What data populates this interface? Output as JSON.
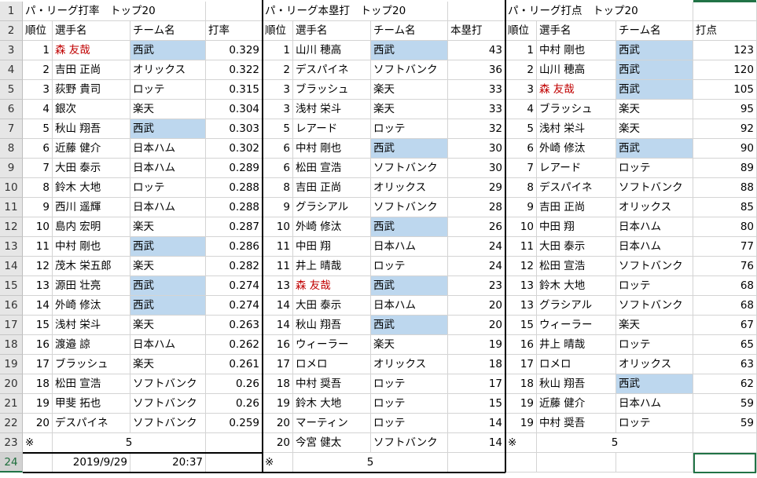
{
  "colors": {
    "seibu_highlight": "#bdd7ee",
    "name_red": "#c00000",
    "select_green": "#217346"
  },
  "row_numbers": [
    "1",
    "2",
    "3",
    "4",
    "5",
    "6",
    "7",
    "8",
    "9",
    "10",
    "11",
    "12",
    "13",
    "14",
    "15",
    "16",
    "17",
    "18",
    "19",
    "20",
    "21",
    "22",
    "23",
    "24"
  ],
  "batting": {
    "title": "パ・リーグ打率　トップ20",
    "headers": [
      "順位",
      "選手名",
      "チーム名",
      "打率"
    ],
    "rows": [
      {
        "rank": "1",
        "name": "森 友哉",
        "team": "西武",
        "value": "0.329",
        "hl": true,
        "red": true
      },
      {
        "rank": "2",
        "name": "吉田 正尚",
        "team": "オリックス",
        "value": "0.322",
        "hl": false,
        "red": false
      },
      {
        "rank": "3",
        "name": "荻野 貴司",
        "team": "ロッテ",
        "value": "0.315",
        "hl": false,
        "red": false
      },
      {
        "rank": "4",
        "name": "銀次",
        "team": "楽天",
        "value": "0.304",
        "hl": false,
        "red": false
      },
      {
        "rank": "5",
        "name": "秋山 翔吾",
        "team": "西武",
        "value": "0.303",
        "hl": true,
        "red": false
      },
      {
        "rank": "6",
        "name": "近藤 健介",
        "team": "日本ハム",
        "value": "0.302",
        "hl": false,
        "red": false
      },
      {
        "rank": "7",
        "name": "大田 泰示",
        "team": "日本ハム",
        "value": "0.289",
        "hl": false,
        "red": false
      },
      {
        "rank": "8",
        "name": "鈴木 大地",
        "team": "ロッテ",
        "value": "0.288",
        "hl": false,
        "red": false
      },
      {
        "rank": "9",
        "name": "西川 遥輝",
        "team": "日本ハム",
        "value": "0.288",
        "hl": false,
        "red": false
      },
      {
        "rank": "10",
        "name": "島内 宏明",
        "team": "楽天",
        "value": "0.287",
        "hl": false,
        "red": false
      },
      {
        "rank": "11",
        "name": "中村 剛也",
        "team": "西武",
        "value": "0.286",
        "hl": true,
        "red": false
      },
      {
        "rank": "12",
        "name": "茂木 栄五郎",
        "team": "楽天",
        "value": "0.282",
        "hl": false,
        "red": false
      },
      {
        "rank": "13",
        "name": "源田 壮亮",
        "team": "西武",
        "value": "0.274",
        "hl": true,
        "red": false
      },
      {
        "rank": "14",
        "name": "外崎 修汰",
        "team": "西武",
        "value": "0.274",
        "hl": true,
        "red": false
      },
      {
        "rank": "15",
        "name": "浅村 栄斗",
        "team": "楽天",
        "value": "0.263",
        "hl": false,
        "red": false
      },
      {
        "rank": "16",
        "name": "渡邉 諒",
        "team": "日本ハム",
        "value": "0.262",
        "hl": false,
        "red": false
      },
      {
        "rank": "17",
        "name": "ブラッシュ",
        "team": "楽天",
        "value": "0.261",
        "hl": false,
        "red": false
      },
      {
        "rank": "18",
        "name": "松田 宣浩",
        "team": "ソフトバンク",
        "value": "0.26",
        "hl": false,
        "red": false
      },
      {
        "rank": "19",
        "name": "甲斐 拓也",
        "team": "ソフトバンク",
        "value": "0.26",
        "hl": false,
        "red": false
      },
      {
        "rank": "20",
        "name": "デスパイネ",
        "team": "ソフトバンク",
        "value": "0.259",
        "hl": false,
        "red": false
      }
    ],
    "footer_mark": "※",
    "footer_count": "5",
    "date": "2019/9/29",
    "time": "20:37"
  },
  "homerun": {
    "title": "パ・リーグ本塁打　トップ20",
    "headers": [
      "順位",
      "選手名",
      "チーム名",
      "本塁打"
    ],
    "rows": [
      {
        "rank": "1",
        "name": "山川 穂高",
        "team": "西武",
        "value": "43",
        "hl": true,
        "red": false
      },
      {
        "rank": "2",
        "name": "デスパイネ",
        "team": "ソフトバンク",
        "value": "36",
        "hl": false,
        "red": false
      },
      {
        "rank": "3",
        "name": "ブラッシュ",
        "team": "楽天",
        "value": "33",
        "hl": false,
        "red": false
      },
      {
        "rank": "3",
        "name": "浅村 栄斗",
        "team": "楽天",
        "value": "33",
        "hl": false,
        "red": false
      },
      {
        "rank": "5",
        "name": "レアード",
        "team": "ロッテ",
        "value": "32",
        "hl": false,
        "red": false
      },
      {
        "rank": "6",
        "name": "中村 剛也",
        "team": "西武",
        "value": "30",
        "hl": true,
        "red": false
      },
      {
        "rank": "6",
        "name": "松田 宣浩",
        "team": "ソフトバンク",
        "value": "30",
        "hl": false,
        "red": false
      },
      {
        "rank": "8",
        "name": "吉田 正尚",
        "team": "オリックス",
        "value": "29",
        "hl": false,
        "red": false
      },
      {
        "rank": "9",
        "name": "グラシアル",
        "team": "ソフトバンク",
        "value": "28",
        "hl": false,
        "red": false
      },
      {
        "rank": "10",
        "name": "外崎 修汰",
        "team": "西武",
        "value": "26",
        "hl": true,
        "red": false
      },
      {
        "rank": "11",
        "name": "中田 翔",
        "team": "日本ハム",
        "value": "24",
        "hl": false,
        "red": false
      },
      {
        "rank": "11",
        "name": "井上 晴哉",
        "team": "ロッテ",
        "value": "24",
        "hl": false,
        "red": false
      },
      {
        "rank": "13",
        "name": "森 友哉",
        "team": "西武",
        "value": "23",
        "hl": true,
        "red": true
      },
      {
        "rank": "14",
        "name": "大田 泰示",
        "team": "日本ハム",
        "value": "20",
        "hl": false,
        "red": false
      },
      {
        "rank": "14",
        "name": "秋山 翔吾",
        "team": "西武",
        "value": "20",
        "hl": true,
        "red": false
      },
      {
        "rank": "16",
        "name": "ウィーラー",
        "team": "楽天",
        "value": "19",
        "hl": false,
        "red": false
      },
      {
        "rank": "17",
        "name": "ロメロ",
        "team": "オリックス",
        "value": "18",
        "hl": false,
        "red": false
      },
      {
        "rank": "18",
        "name": "中村 奨吾",
        "team": "ロッテ",
        "value": "17",
        "hl": false,
        "red": false
      },
      {
        "rank": "19",
        "name": "鈴木 大地",
        "team": "ロッテ",
        "value": "15",
        "hl": false,
        "red": false
      },
      {
        "rank": "20",
        "name": "マーティン",
        "team": "ロッテ",
        "value": "14",
        "hl": false,
        "red": false
      },
      {
        "rank": "20",
        "name": "今宮 健太",
        "team": "ソフトバンク",
        "value": "14",
        "hl": false,
        "red": false
      }
    ],
    "footer_mark": "※",
    "footer_count": "5"
  },
  "rbi": {
    "title": "パ・リーグ打点　トップ20",
    "headers": [
      "順位",
      "選手名",
      "チーム名",
      "打点"
    ],
    "rows": [
      {
        "rank": "1",
        "name": "中村 剛也",
        "team": "西武",
        "value": "123",
        "hl": true,
        "red": false
      },
      {
        "rank": "2",
        "name": "山川 穂高",
        "team": "西武",
        "value": "120",
        "hl": true,
        "red": false
      },
      {
        "rank": "3",
        "name": "森 友哉",
        "team": "西武",
        "value": "105",
        "hl": true,
        "red": true
      },
      {
        "rank": "4",
        "name": "ブラッシュ",
        "team": "楽天",
        "value": "95",
        "hl": false,
        "red": false
      },
      {
        "rank": "5",
        "name": "浅村 栄斗",
        "team": "楽天",
        "value": "92",
        "hl": false,
        "red": false
      },
      {
        "rank": "6",
        "name": "外崎 修汰",
        "team": "西武",
        "value": "90",
        "hl": true,
        "red": false
      },
      {
        "rank": "7",
        "name": "レアード",
        "team": "ロッテ",
        "value": "89",
        "hl": false,
        "red": false
      },
      {
        "rank": "8",
        "name": "デスパイネ",
        "team": "ソフトバンク",
        "value": "88",
        "hl": false,
        "red": false
      },
      {
        "rank": "9",
        "name": "吉田 正尚",
        "team": "オリックス",
        "value": "85",
        "hl": false,
        "red": false
      },
      {
        "rank": "10",
        "name": "中田 翔",
        "team": "日本ハム",
        "value": "80",
        "hl": false,
        "red": false
      },
      {
        "rank": "11",
        "name": "大田 泰示",
        "team": "日本ハム",
        "value": "77",
        "hl": false,
        "red": false
      },
      {
        "rank": "12",
        "name": "松田 宣浩",
        "team": "ソフトバンク",
        "value": "76",
        "hl": false,
        "red": false
      },
      {
        "rank": "13",
        "name": "鈴木 大地",
        "team": "ロッテ",
        "value": "68",
        "hl": false,
        "red": false
      },
      {
        "rank": "13",
        "name": "グラシアル",
        "team": "ソフトバンク",
        "value": "68",
        "hl": false,
        "red": false
      },
      {
        "rank": "15",
        "name": "ウィーラー",
        "team": "楽天",
        "value": "67",
        "hl": false,
        "red": false
      },
      {
        "rank": "16",
        "name": "井上 晴哉",
        "team": "ロッテ",
        "value": "65",
        "hl": false,
        "red": false
      },
      {
        "rank": "17",
        "name": "ロメロ",
        "team": "オリックス",
        "value": "63",
        "hl": false,
        "red": false
      },
      {
        "rank": "18",
        "name": "秋山 翔吾",
        "team": "西武",
        "value": "62",
        "hl": true,
        "red": false
      },
      {
        "rank": "19",
        "name": "近藤 健介",
        "team": "日本ハム",
        "value": "59",
        "hl": false,
        "red": false
      },
      {
        "rank": "19",
        "name": "中村 奨吾",
        "team": "ロッテ",
        "value": "59",
        "hl": false,
        "red": false
      }
    ],
    "footer_mark": "※",
    "footer_count": "5"
  }
}
